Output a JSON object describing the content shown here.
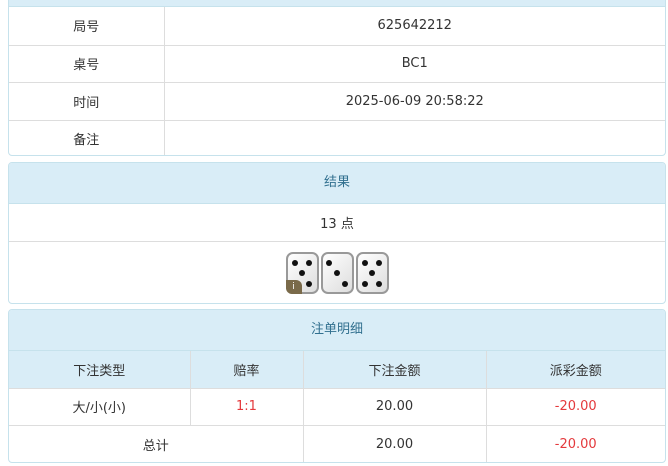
{
  "info": {
    "rows": [
      {
        "label": "局号",
        "value": "625642212"
      },
      {
        "label": "桌号",
        "value": "BC1"
      },
      {
        "label": "时间",
        "value": "2025-06-09 20:58:22"
      },
      {
        "label": "备注",
        "value": ""
      }
    ]
  },
  "result": {
    "title": "结果",
    "points": "13 点",
    "dice": [
      5,
      3,
      5
    ],
    "badge": "i"
  },
  "bets": {
    "title": "注单明细",
    "headers": [
      "下注类型",
      "赔率",
      "下注金额",
      "派彩金额"
    ],
    "rows": [
      {
        "type": "大/小(小)",
        "odds": "1:1",
        "amount": "20.00",
        "payout": "-20.00"
      }
    ],
    "total": {
      "label": "总计",
      "amount": "20.00",
      "payout": "-20.00"
    }
  },
  "colors": {
    "header_bg": "#d9edf7",
    "header_text": "#31708f",
    "negative": "#e4393c"
  }
}
